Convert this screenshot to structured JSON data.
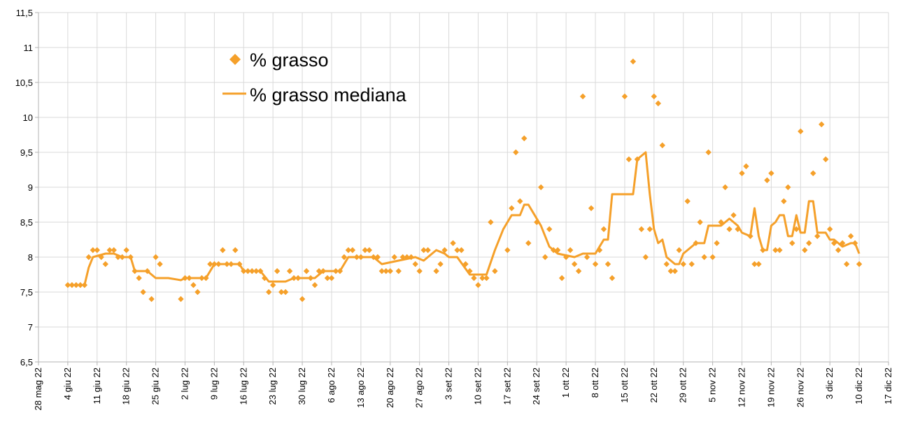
{
  "chart_data": {
    "type": "scatter",
    "title": "",
    "xlabel": "",
    "ylabel": "",
    "x_ticks": [
      "28 mag 22",
      "4 giu 22",
      "11 giu 22",
      "18 giu 22",
      "25 giu 22",
      "2 lug 22",
      "9 lug 22",
      "16 lug 22",
      "23 lug 22",
      "30 lug 22",
      "6 ago 22",
      "13 ago 22",
      "20 ago 22",
      "27 ago 22",
      "3 set 22",
      "10 set 22",
      "17 set 22",
      "24 set 22",
      "1 ott 22",
      "8 ott 22",
      "15 ott 22",
      "22 ott 22",
      "29 ott 22",
      "5 nov 22",
      "12 nov 22",
      "19 nov 22",
      "26 nov 22",
      "3 dic 22",
      "10 dic 22",
      "17 dic 22"
    ],
    "xlim": [
      "2022-05-28",
      "2022-12-17"
    ],
    "y_ticks": [
      "6,5",
      "7",
      "7,5",
      "8",
      "8,5",
      "9",
      "9,5",
      "10",
      "10,5",
      "11",
      "11,5"
    ],
    "ylim": [
      6.5,
      11.5
    ],
    "grid": true,
    "legend_position": "top-left",
    "colors": {
      "series": "#f5a02a",
      "grid": "#d9d9d9",
      "axis": "#b3b3b3"
    },
    "series": [
      {
        "name": "% grasso",
        "style": "markers",
        "marker": "diamond",
        "points": [
          [
            "2022-06-04",
            7.6
          ],
          [
            "2022-06-05",
            7.6
          ],
          [
            "2022-06-06",
            7.6
          ],
          [
            "2022-06-07",
            7.6
          ],
          [
            "2022-06-08",
            7.6
          ],
          [
            "2022-06-09",
            8.0
          ],
          [
            "2022-06-10",
            8.1
          ],
          [
            "2022-06-11",
            8.1
          ],
          [
            "2022-06-12",
            8.0
          ],
          [
            "2022-06-13",
            7.9
          ],
          [
            "2022-06-14",
            8.1
          ],
          [
            "2022-06-15",
            8.1
          ],
          [
            "2022-06-16",
            8.0
          ],
          [
            "2022-06-17",
            8.0
          ],
          [
            "2022-06-18",
            8.1
          ],
          [
            "2022-06-19",
            8.0
          ],
          [
            "2022-06-20",
            7.8
          ],
          [
            "2022-06-21",
            7.7
          ],
          [
            "2022-06-22",
            7.5
          ],
          [
            "2022-06-23",
            7.8
          ],
          [
            "2022-06-24",
            7.4
          ],
          [
            "2022-06-25",
            8.0
          ],
          [
            "2022-06-26",
            7.9
          ],
          [
            "2022-07-01",
            7.4
          ],
          [
            "2022-07-02",
            7.7
          ],
          [
            "2022-07-03",
            7.7
          ],
          [
            "2022-07-04",
            7.6
          ],
          [
            "2022-07-05",
            7.5
          ],
          [
            "2022-07-06",
            7.7
          ],
          [
            "2022-07-07",
            7.7
          ],
          [
            "2022-07-08",
            7.9
          ],
          [
            "2022-07-09",
            7.9
          ],
          [
            "2022-07-10",
            7.9
          ],
          [
            "2022-07-11",
            8.1
          ],
          [
            "2022-07-12",
            7.9
          ],
          [
            "2022-07-13",
            7.9
          ],
          [
            "2022-07-14",
            8.1
          ],
          [
            "2022-07-15",
            7.9
          ],
          [
            "2022-07-16",
            7.8
          ],
          [
            "2022-07-17",
            7.8
          ],
          [
            "2022-07-18",
            7.8
          ],
          [
            "2022-07-19",
            7.8
          ],
          [
            "2022-07-20",
            7.8
          ],
          [
            "2022-07-21",
            7.7
          ],
          [
            "2022-07-22",
            7.5
          ],
          [
            "2022-07-23",
            7.6
          ],
          [
            "2022-07-24",
            7.8
          ],
          [
            "2022-07-25",
            7.5
          ],
          [
            "2022-07-26",
            7.5
          ],
          [
            "2022-07-27",
            7.8
          ],
          [
            "2022-07-28",
            7.7
          ],
          [
            "2022-07-29",
            7.7
          ],
          [
            "2022-07-30",
            7.4
          ],
          [
            "2022-07-31",
            7.8
          ],
          [
            "2022-08-01",
            7.7
          ],
          [
            "2022-08-02",
            7.6
          ],
          [
            "2022-08-03",
            7.8
          ],
          [
            "2022-08-04",
            7.8
          ],
          [
            "2022-08-05",
            7.7
          ],
          [
            "2022-08-06",
            7.7
          ],
          [
            "2022-08-07",
            7.8
          ],
          [
            "2022-08-08",
            7.8
          ],
          [
            "2022-08-09",
            8.0
          ],
          [
            "2022-08-10",
            8.1
          ],
          [
            "2022-08-11",
            8.1
          ],
          [
            "2022-08-12",
            8.0
          ],
          [
            "2022-08-13",
            8.0
          ],
          [
            "2022-08-14",
            8.1
          ],
          [
            "2022-08-15",
            8.1
          ],
          [
            "2022-08-16",
            8.0
          ],
          [
            "2022-08-17",
            8.0
          ],
          [
            "2022-08-18",
            7.8
          ],
          [
            "2022-08-19",
            7.8
          ],
          [
            "2022-08-20",
            7.8
          ],
          [
            "2022-08-21",
            8.0
          ],
          [
            "2022-08-22",
            7.8
          ],
          [
            "2022-08-23",
            8.0
          ],
          [
            "2022-08-24",
            8.0
          ],
          [
            "2022-08-25",
            8.0
          ],
          [
            "2022-08-26",
            7.9
          ],
          [
            "2022-08-27",
            7.8
          ],
          [
            "2022-08-28",
            8.1
          ],
          [
            "2022-08-29",
            8.1
          ],
          [
            "2022-08-31",
            7.8
          ],
          [
            "2022-09-01",
            7.9
          ],
          [
            "2022-09-02",
            8.1
          ],
          [
            "2022-09-04",
            8.2
          ],
          [
            "2022-09-05",
            8.1
          ],
          [
            "2022-09-06",
            8.1
          ],
          [
            "2022-09-07",
            7.9
          ],
          [
            "2022-09-08",
            7.8
          ],
          [
            "2022-09-09",
            7.7
          ],
          [
            "2022-09-10",
            7.6
          ],
          [
            "2022-09-11",
            7.7
          ],
          [
            "2022-09-12",
            7.7
          ],
          [
            "2022-09-13",
            8.5
          ],
          [
            "2022-09-14",
            7.8
          ],
          [
            "2022-09-17",
            8.1
          ],
          [
            "2022-09-18",
            8.7
          ],
          [
            "2022-09-19",
            9.5
          ],
          [
            "2022-09-20",
            8.8
          ],
          [
            "2022-09-21",
            9.7
          ],
          [
            "2022-09-22",
            8.2
          ],
          [
            "2022-09-24",
            8.5
          ],
          [
            "2022-09-25",
            9.0
          ],
          [
            "2022-09-26",
            8.0
          ],
          [
            "2022-09-27",
            8.4
          ],
          [
            "2022-09-28",
            8.1
          ],
          [
            "2022-09-29",
            8.1
          ],
          [
            "2022-09-30",
            7.7
          ],
          [
            "2022-10-01",
            8.0
          ],
          [
            "2022-10-02",
            8.1
          ],
          [
            "2022-10-03",
            7.9
          ],
          [
            "2022-10-04",
            7.8
          ],
          [
            "2022-10-05",
            10.3
          ],
          [
            "2022-10-06",
            8.0
          ],
          [
            "2022-10-07",
            8.7
          ],
          [
            "2022-10-08",
            7.9
          ],
          [
            "2022-10-09",
            8.1
          ],
          [
            "2022-10-10",
            8.4
          ],
          [
            "2022-10-11",
            7.9
          ],
          [
            "2022-10-12",
            7.7
          ],
          [
            "2022-10-15",
            10.3
          ],
          [
            "2022-10-16",
            9.4
          ],
          [
            "2022-10-17",
            10.8
          ],
          [
            "2022-10-18",
            9.4
          ],
          [
            "2022-10-19",
            8.4
          ],
          [
            "2022-10-20",
            8.0
          ],
          [
            "2022-10-21",
            8.4
          ],
          [
            "2022-10-22",
            10.3
          ],
          [
            "2022-10-23",
            10.2
          ],
          [
            "2022-10-24",
            9.6
          ],
          [
            "2022-10-25",
            7.9
          ],
          [
            "2022-10-26",
            7.8
          ],
          [
            "2022-10-27",
            7.8
          ],
          [
            "2022-10-28",
            8.1
          ],
          [
            "2022-10-29",
            7.9
          ],
          [
            "2022-10-30",
            8.8
          ],
          [
            "2022-10-31",
            7.9
          ],
          [
            "2022-11-01",
            8.2
          ],
          [
            "2022-11-02",
            8.5
          ],
          [
            "2022-11-03",
            8.0
          ],
          [
            "2022-11-04",
            9.5
          ],
          [
            "2022-11-05",
            8.0
          ],
          [
            "2022-11-06",
            8.2
          ],
          [
            "2022-11-07",
            8.5
          ],
          [
            "2022-11-08",
            9.0
          ],
          [
            "2022-11-09",
            8.4
          ],
          [
            "2022-11-10",
            8.6
          ],
          [
            "2022-11-11",
            8.4
          ],
          [
            "2022-11-12",
            9.2
          ],
          [
            "2022-11-13",
            9.3
          ],
          [
            "2022-11-14",
            8.3
          ],
          [
            "2022-11-15",
            7.9
          ],
          [
            "2022-11-16",
            7.9
          ],
          [
            "2022-11-17",
            8.1
          ],
          [
            "2022-11-18",
            9.1
          ],
          [
            "2022-11-19",
            9.2
          ],
          [
            "2022-11-20",
            8.1
          ],
          [
            "2022-11-21",
            8.1
          ],
          [
            "2022-11-22",
            8.8
          ],
          [
            "2022-11-23",
            9.0
          ],
          [
            "2022-11-24",
            8.2
          ],
          [
            "2022-11-25",
            8.4
          ],
          [
            "2022-11-26",
            9.8
          ],
          [
            "2022-11-27",
            8.1
          ],
          [
            "2022-11-28",
            8.2
          ],
          [
            "2022-11-29",
            9.2
          ],
          [
            "2022-11-30",
            8.3
          ],
          [
            "2022-12-01",
            9.9
          ],
          [
            "2022-12-02",
            9.4
          ],
          [
            "2022-12-03",
            8.4
          ],
          [
            "2022-12-04",
            8.2
          ],
          [
            "2022-12-05",
            8.1
          ],
          [
            "2022-12-06",
            8.2
          ],
          [
            "2022-12-07",
            7.9
          ],
          [
            "2022-12-08",
            8.3
          ],
          [
            "2022-12-09",
            8.2
          ],
          [
            "2022-12-10",
            7.9
          ]
        ]
      },
      {
        "name": "% grasso mediana",
        "style": "line",
        "points": [
          [
            "2022-06-04",
            7.6
          ],
          [
            "2022-06-08",
            7.6
          ],
          [
            "2022-06-09",
            7.85
          ],
          [
            "2022-06-10",
            8.0
          ],
          [
            "2022-06-13",
            8.05
          ],
          [
            "2022-06-15",
            8.05
          ],
          [
            "2022-06-17",
            8.0
          ],
          [
            "2022-06-19",
            8.0
          ],
          [
            "2022-06-20",
            7.8
          ],
          [
            "2022-06-23",
            7.8
          ],
          [
            "2022-06-25",
            7.7
          ],
          [
            "2022-06-28",
            7.7
          ],
          [
            "2022-07-01",
            7.67
          ],
          [
            "2022-07-02",
            7.7
          ],
          [
            "2022-07-07",
            7.7
          ],
          [
            "2022-07-09",
            7.9
          ],
          [
            "2022-07-15",
            7.9
          ],
          [
            "2022-07-16",
            7.8
          ],
          [
            "2022-07-20",
            7.8
          ],
          [
            "2022-07-22",
            7.65
          ],
          [
            "2022-07-26",
            7.65
          ],
          [
            "2022-07-28",
            7.7
          ],
          [
            "2022-08-02",
            7.7
          ],
          [
            "2022-08-04",
            7.8
          ],
          [
            "2022-08-08",
            7.8
          ],
          [
            "2022-08-10",
            8.0
          ],
          [
            "2022-08-16",
            8.0
          ],
          [
            "2022-08-18",
            7.9
          ],
          [
            "2022-08-22",
            7.95
          ],
          [
            "2022-08-26",
            8.0
          ],
          [
            "2022-08-28",
            7.95
          ],
          [
            "2022-08-31",
            8.1
          ],
          [
            "2022-09-02",
            8.05
          ],
          [
            "2022-09-03",
            8.0
          ],
          [
            "2022-09-05",
            8.0
          ],
          [
            "2022-09-08",
            7.75
          ],
          [
            "2022-09-12",
            7.75
          ],
          [
            "2022-09-14",
            8.1
          ],
          [
            "2022-09-16",
            8.4
          ],
          [
            "2022-09-18",
            8.6
          ],
          [
            "2022-09-20",
            8.6
          ],
          [
            "2022-09-21",
            8.75
          ],
          [
            "2022-09-22",
            8.75
          ],
          [
            "2022-09-25",
            8.45
          ],
          [
            "2022-09-27",
            8.15
          ],
          [
            "2022-09-29",
            8.05
          ],
          [
            "2022-10-03",
            8.0
          ],
          [
            "2022-10-05",
            8.05
          ],
          [
            "2022-10-08",
            8.05
          ],
          [
            "2022-10-10",
            8.25
          ],
          [
            "2022-10-11",
            8.25
          ],
          [
            "2022-10-12",
            8.9
          ],
          [
            "2022-10-17",
            8.9
          ],
          [
            "2022-10-18",
            9.4
          ],
          [
            "2022-10-20",
            9.5
          ],
          [
            "2022-10-21",
            8.9
          ],
          [
            "2022-10-22",
            8.4
          ],
          [
            "2022-10-23",
            8.2
          ],
          [
            "2022-10-24",
            8.25
          ],
          [
            "2022-10-25",
            8.0
          ],
          [
            "2022-10-27",
            7.9
          ],
          [
            "2022-10-28",
            7.9
          ],
          [
            "2022-10-29",
            8.05
          ],
          [
            "2022-10-31",
            8.15
          ],
          [
            "2022-11-01",
            8.2
          ],
          [
            "2022-11-03",
            8.2
          ],
          [
            "2022-11-04",
            8.45
          ],
          [
            "2022-11-07",
            8.45
          ],
          [
            "2022-11-09",
            8.55
          ],
          [
            "2022-11-11",
            8.45
          ],
          [
            "2022-11-12",
            8.35
          ],
          [
            "2022-11-14",
            8.3
          ],
          [
            "2022-11-15",
            8.7
          ],
          [
            "2022-11-16",
            8.3
          ],
          [
            "2022-11-17",
            8.1
          ],
          [
            "2022-11-18",
            8.1
          ],
          [
            "2022-11-19",
            8.45
          ],
          [
            "2022-11-20",
            8.5
          ],
          [
            "2022-11-21",
            8.6
          ],
          [
            "2022-11-22",
            8.6
          ],
          [
            "2022-11-23",
            8.3
          ],
          [
            "2022-11-24",
            8.3
          ],
          [
            "2022-11-25",
            8.6
          ],
          [
            "2022-11-26",
            8.35
          ],
          [
            "2022-11-27",
            8.35
          ],
          [
            "2022-11-28",
            8.8
          ],
          [
            "2022-11-29",
            8.8
          ],
          [
            "2022-11-30",
            8.35
          ],
          [
            "2022-12-02",
            8.35
          ],
          [
            "2022-12-03",
            8.25
          ],
          [
            "2022-12-04",
            8.25
          ],
          [
            "2022-12-06",
            8.15
          ],
          [
            "2022-12-08",
            8.2
          ],
          [
            "2022-12-09",
            8.2
          ],
          [
            "2022-12-10",
            8.05
          ]
        ]
      }
    ]
  }
}
